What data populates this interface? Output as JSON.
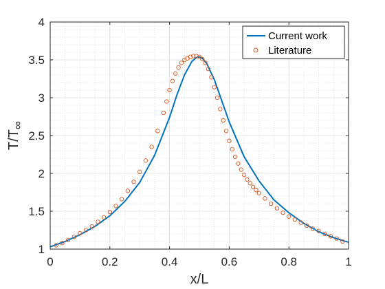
{
  "chart_data": {
    "type": "line",
    "xlabel": "x/L",
    "ylabel_main": "T/T",
    "ylabel_sub": "∞",
    "xlim": [
      0,
      1
    ],
    "ylim": [
      1,
      4
    ],
    "xticks": [
      0,
      0.2,
      0.4,
      0.6,
      0.8,
      1
    ],
    "xtick_labels": [
      "0",
      "0.2",
      "0.4",
      "0.6",
      "0.8",
      "1"
    ],
    "yticks": [
      1,
      1.5,
      2,
      2.5,
      3,
      3.5,
      4
    ],
    "ytick_labels": [
      "1",
      "1.5",
      "2",
      "2.5",
      "3",
      "3.5",
      "4"
    ],
    "grid": true,
    "minor_grid": true,
    "legend_position": "top-right",
    "series": [
      {
        "name": "Current work",
        "style": "line",
        "color": "#0072BD",
        "x": [
          0,
          0.05,
          0.1,
          0.15,
          0.2,
          0.25,
          0.3,
          0.35,
          0.4,
          0.425,
          0.45,
          0.475,
          0.49,
          0.5,
          0.51,
          0.525,
          0.55,
          0.575,
          0.6,
          0.65,
          0.7,
          0.75,
          0.8,
          0.85,
          0.9,
          0.95,
          1.0
        ],
        "y": [
          1.03,
          1.1,
          1.19,
          1.3,
          1.44,
          1.63,
          1.88,
          2.24,
          2.74,
          3.04,
          3.3,
          3.48,
          3.53,
          3.54,
          3.52,
          3.45,
          3.24,
          2.96,
          2.68,
          2.22,
          1.9,
          1.65,
          1.48,
          1.34,
          1.23,
          1.15,
          1.09
        ]
      },
      {
        "name": "Literature",
        "style": "markers",
        "color": "#D95319",
        "x": [
          0.02,
          0.04,
          0.06,
          0.08,
          0.1,
          0.12,
          0.14,
          0.16,
          0.18,
          0.2,
          0.22,
          0.24,
          0.26,
          0.28,
          0.3,
          0.32,
          0.34,
          0.36,
          0.38,
          0.39,
          0.4,
          0.41,
          0.42,
          0.43,
          0.44,
          0.45,
          0.46,
          0.47,
          0.48,
          0.49,
          0.5,
          0.51,
          0.52,
          0.53,
          0.54,
          0.55,
          0.56,
          0.57,
          0.58,
          0.59,
          0.6,
          0.61,
          0.62,
          0.63,
          0.64,
          0.65,
          0.66,
          0.67,
          0.68,
          0.69,
          0.7,
          0.72,
          0.74,
          0.76,
          0.78,
          0.8,
          0.82,
          0.84,
          0.86,
          0.88,
          0.9,
          0.92,
          0.94,
          0.96,
          0.98
        ],
        "y": [
          1.05,
          1.08,
          1.12,
          1.16,
          1.21,
          1.25,
          1.3,
          1.36,
          1.42,
          1.49,
          1.57,
          1.66,
          1.77,
          1.89,
          2.02,
          2.17,
          2.35,
          2.56,
          2.8,
          2.95,
          3.1,
          3.22,
          3.32,
          3.4,
          3.46,
          3.5,
          3.52,
          3.54,
          3.55,
          3.55,
          3.54,
          3.51,
          3.46,
          3.38,
          3.27,
          3.14,
          3.0,
          2.85,
          2.7,
          2.56,
          2.43,
          2.32,
          2.22,
          2.13,
          2.05,
          1.98,
          1.92,
          1.87,
          1.82,
          1.78,
          1.74,
          1.67,
          1.6,
          1.54,
          1.48,
          1.43,
          1.39,
          1.35,
          1.31,
          1.27,
          1.24,
          1.2,
          1.17,
          1.14,
          1.1
        ]
      }
    ]
  }
}
